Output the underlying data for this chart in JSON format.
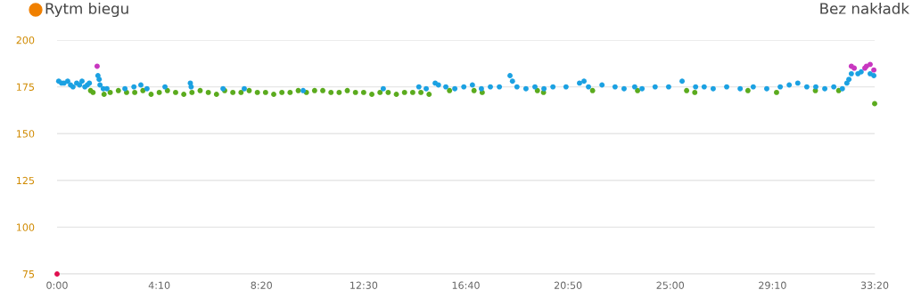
{
  "chart_data": {
    "type": "scatter",
    "title": "Rytm biegu",
    "annotations": [
      "Bez nakładk"
    ],
    "marker": "circle",
    "grid": "y",
    "legend": false,
    "xlim": [
      0,
      2000
    ],
    "xticks": [
      {
        "value": 0,
        "label": "0:00"
      },
      {
        "value": 250,
        "label": "4:10"
      },
      {
        "value": 500,
        "label": "8:20"
      },
      {
        "value": 750,
        "label": "12:30"
      },
      {
        "value": 1000,
        "label": "16:40"
      },
      {
        "value": 1250,
        "label": "20:50"
      },
      {
        "value": 1500,
        "label": "25:00"
      },
      {
        "value": 1750,
        "label": "29:10"
      },
      {
        "value": 2000,
        "label": "33:20"
      }
    ],
    "ylim": [
      75,
      200
    ],
    "yticks": [
      75,
      100,
      125,
      150,
      175,
      200
    ],
    "series": [
      {
        "color": "#e0104f",
        "x": [
          0
        ],
        "values": [
          75
        ]
      },
      {
        "color": "#5bab1e",
        "x": [
          82,
          88,
          115,
          130,
          150,
          170,
          190,
          210,
          230,
          250,
          270,
          290,
          310,
          330,
          350,
          370,
          390,
          410,
          430,
          450,
          470,
          490,
          510,
          530,
          550,
          570,
          590,
          610,
          630,
          650,
          670,
          690,
          710,
          730,
          750,
          770,
          790,
          810,
          830,
          850,
          870,
          890,
          910,
          960,
          1020,
          1040,
          1175,
          1190,
          1310,
          1420,
          1540,
          1560,
          1690,
          1760,
          1855,
          1912,
          2000
        ],
        "values": [
          173,
          172,
          171,
          172,
          173,
          172,
          172,
          173,
          171,
          172,
          173,
          172,
          171,
          172,
          173,
          172,
          171,
          173,
          172,
          172,
          173,
          172,
          172,
          171,
          172,
          172,
          173,
          172,
          173,
          173,
          172,
          172,
          173,
          172,
          172,
          171,
          172,
          172,
          171,
          172,
          172,
          172,
          171,
          173,
          173,
          172,
          173,
          172,
          173,
          173,
          173,
          172,
          173,
          172,
          173,
          173,
          166
        ]
      },
      {
        "color": "#1ba1e2",
        "x": [
          4,
          11,
          17,
          26,
          33,
          39,
          48,
          55,
          61,
          68,
          74,
          79,
          100,
          103,
          105,
          113,
          122,
          166,
          188,
          205,
          220,
          264,
          326,
          328,
          406,
          458,
          602,
          798,
          885,
          903,
          925,
          933,
          951,
          973,
          995,
          1016,
          1038,
          1060,
          1082,
          1108,
          1114,
          1125,
          1147,
          1169,
          1191,
          1213,
          1245,
          1278,
          1289,
          1300,
          1333,
          1365,
          1387,
          1413,
          1431,
          1463,
          1496,
          1529,
          1562,
          1583,
          1605,
          1638,
          1671,
          1703,
          1736,
          1769,
          1791,
          1812,
          1834,
          1856,
          1878,
          1900,
          1921,
          1932,
          1937,
          1943,
          1959,
          1967,
          1989,
          1998
        ],
        "values": [
          178,
          177,
          177,
          178,
          176,
          175,
          177,
          176,
          178,
          175,
          176,
          177,
          181,
          179,
          176,
          174,
          174,
          174,
          175,
          176,
          174,
          175,
          177,
          175,
          174,
          174,
          173,
          174,
          175,
          174,
          177,
          176,
          175,
          174,
          175,
          176,
          174,
          175,
          175,
          181,
          178,
          175,
          174,
          175,
          174,
          175,
          175,
          177,
          178,
          175,
          176,
          175,
          174,
          175,
          174,
          175,
          175,
          178,
          175,
          175,
          174,
          175,
          174,
          175,
          174,
          175,
          176,
          177,
          175,
          175,
          174,
          175,
          174,
          177,
          179,
          182,
          182,
          183,
          182,
          181
        ]
      },
      {
        "color": "#c837c0",
        "x": [
          98,
          1943,
          1950,
          1976,
          1980,
          1989,
          1998
        ],
        "values": [
          186,
          186,
          185,
          185,
          186,
          187,
          184
        ]
      }
    ]
  }
}
